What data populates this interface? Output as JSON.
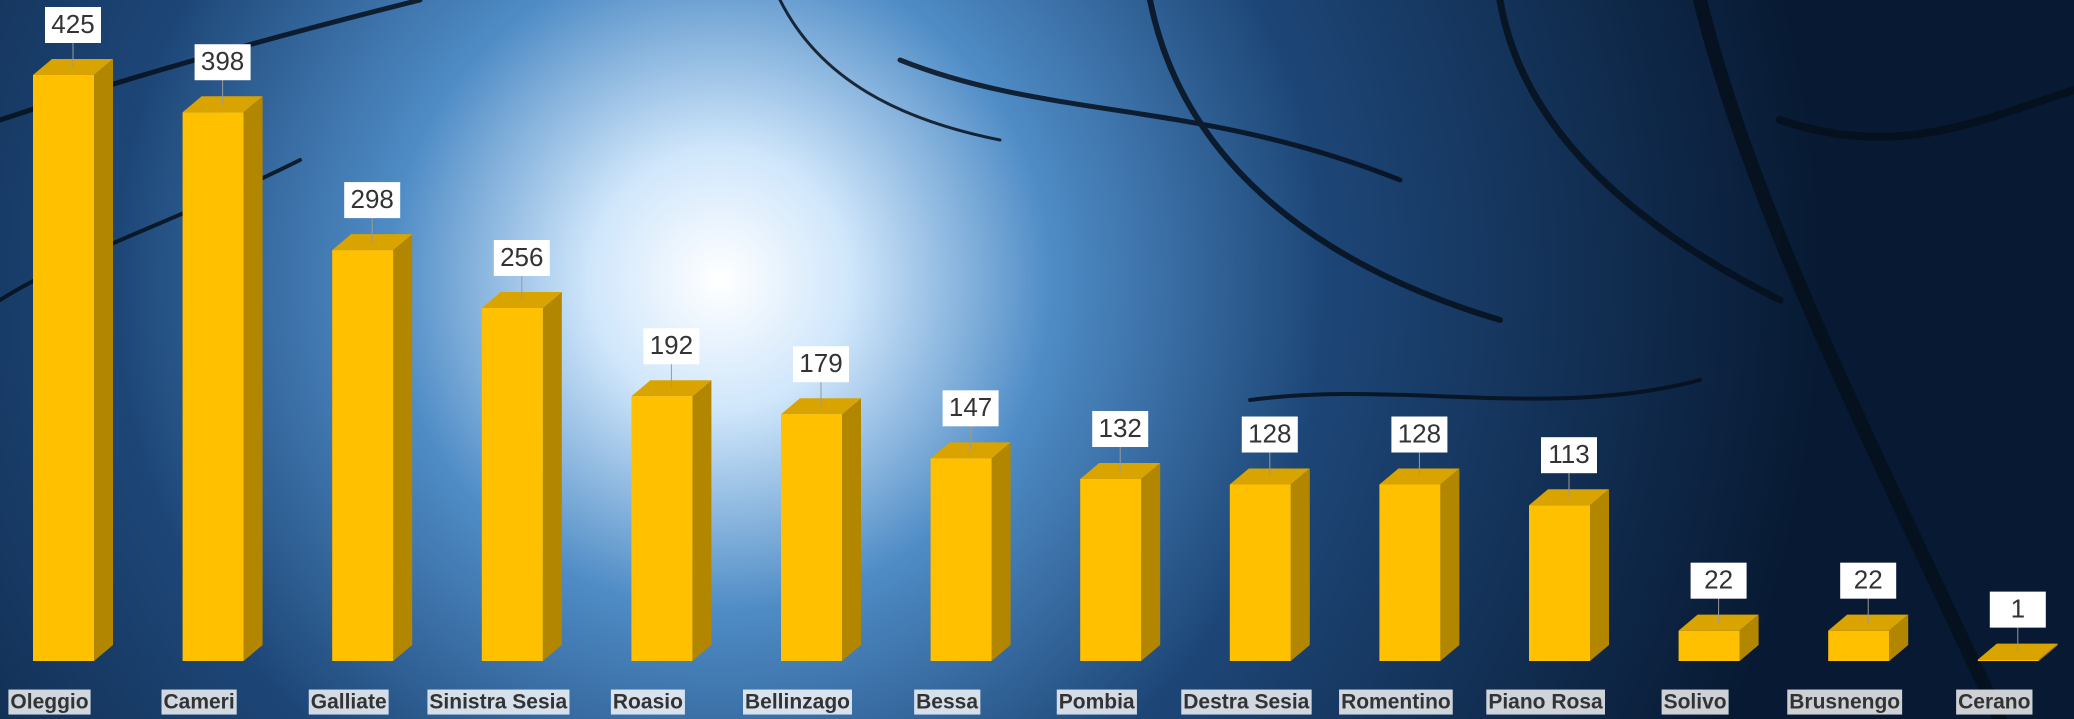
{
  "chart_data": {
    "type": "bar",
    "categories": [
      "Oleggio",
      "Cameri",
      "Galliate",
      "Sinistra Sesia",
      "Roasio",
      "Bellinzago",
      "Bessa",
      "Pombia",
      "Destra Sesia",
      "Romentino",
      "Piano Rosa",
      "Solivo",
      "Brusnengo",
      "Cerano"
    ],
    "values": [
      425,
      398,
      298,
      256,
      192,
      179,
      147,
      132,
      128,
      128,
      113,
      22,
      22,
      1
    ],
    "color": "#ffc000"
  }
}
